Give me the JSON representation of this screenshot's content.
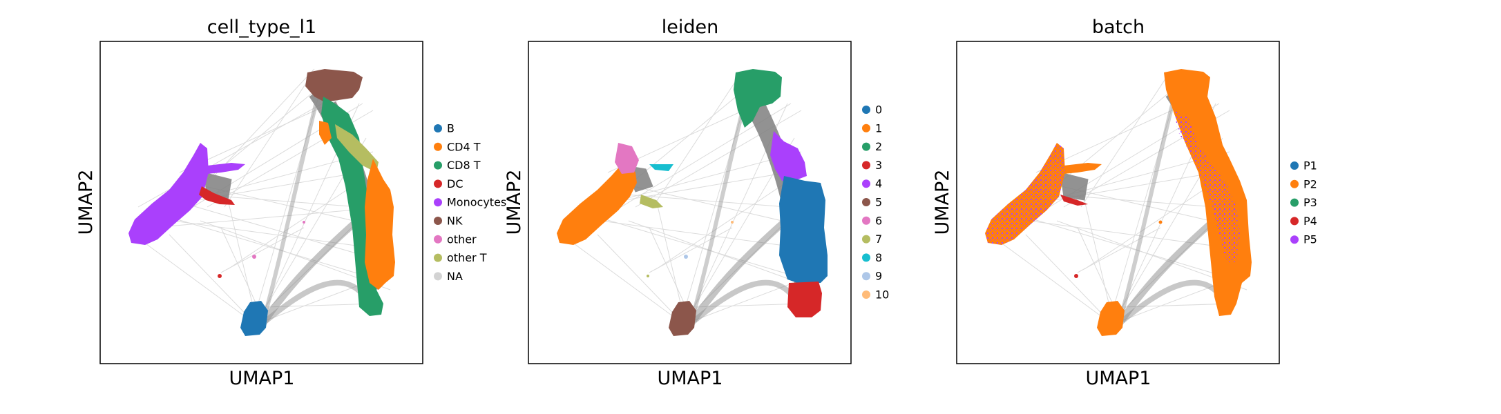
{
  "chart_data": [
    {
      "type": "scatter",
      "title": "cell_type_l1",
      "xlabel": "UMAP1",
      "ylabel": "UMAP2",
      "grid": false,
      "legend": {
        "placement": "right",
        "entries": [
          {
            "label": "B",
            "color": "#1f77b4"
          },
          {
            "label": "CD4 T",
            "color": "#ff7f0e"
          },
          {
            "label": "CD8 T",
            "color": "#279e68"
          },
          {
            "label": "DC",
            "color": "#d62728"
          },
          {
            "label": "Monocytes",
            "color": "#aa40fc"
          },
          {
            "label": "NK",
            "color": "#8c564b"
          },
          {
            "label": "other",
            "color": "#e377c2"
          },
          {
            "label": "other T",
            "color": "#b5bd61"
          },
          {
            "label": "NA",
            "color": "#d3d3d3"
          }
        ]
      },
      "clusters": [
        {
          "group": "Monocytes",
          "x": 0.3,
          "y": 0.55
        },
        {
          "group": "DC",
          "x": 0.36,
          "y": 0.49
        },
        {
          "group": "B",
          "x": 0.47,
          "y": 0.13
        },
        {
          "group": "NK",
          "x": 0.73,
          "y": 0.88
        },
        {
          "group": "CD8 T",
          "x": 0.82,
          "y": 0.58
        },
        {
          "group": "other T",
          "x": 0.8,
          "y": 0.68
        },
        {
          "group": "CD4 T",
          "x": 0.88,
          "y": 0.4
        }
      ]
    },
    {
      "type": "scatter",
      "title": "leiden",
      "xlabel": "UMAP1",
      "ylabel": "UMAP2",
      "grid": false,
      "legend": {
        "placement": "right",
        "entries": [
          {
            "label": "0",
            "color": "#1f77b4"
          },
          {
            "label": "1",
            "color": "#ff7f0e"
          },
          {
            "label": "2",
            "color": "#279e68"
          },
          {
            "label": "3",
            "color": "#d62728"
          },
          {
            "label": "4",
            "color": "#aa40fc"
          },
          {
            "label": "5",
            "color": "#8c564b"
          },
          {
            "label": "6",
            "color": "#e377c2"
          },
          {
            "label": "7",
            "color": "#b5bd61"
          },
          {
            "label": "8",
            "color": "#17becf"
          },
          {
            "label": "9",
            "color": "#aec7e8"
          },
          {
            "label": "10",
            "color": "#ffbb78"
          }
        ]
      },
      "clusters": [
        {
          "group": "1",
          "x": 0.3,
          "y": 0.53
        },
        {
          "group": "6",
          "x": 0.33,
          "y": 0.63
        },
        {
          "group": "7",
          "x": 0.38,
          "y": 0.5
        },
        {
          "group": "8",
          "x": 0.44,
          "y": 0.61
        },
        {
          "group": "5",
          "x": 0.47,
          "y": 0.15
        },
        {
          "group": "2",
          "x": 0.73,
          "y": 0.85
        },
        {
          "group": "4",
          "x": 0.82,
          "y": 0.65
        },
        {
          "group": "0",
          "x": 0.87,
          "y": 0.4
        },
        {
          "group": "3",
          "x": 0.86,
          "y": 0.2
        }
      ]
    },
    {
      "type": "scatter",
      "title": "batch",
      "xlabel": "UMAP1",
      "ylabel": "UMAP2",
      "grid": false,
      "legend": {
        "placement": "right",
        "entries": [
          {
            "label": "P1",
            "color": "#1f77b4"
          },
          {
            "label": "P2",
            "color": "#ff7f0e"
          },
          {
            "label": "P3",
            "color": "#279e68"
          },
          {
            "label": "P4",
            "color": "#d62728"
          },
          {
            "label": "P5",
            "color": "#aa40fc"
          }
        ]
      },
      "clusters": [
        {
          "group": "P2",
          "x": 0.3,
          "y": 0.55
        },
        {
          "group": "P5",
          "x": 0.32,
          "y": 0.52
        },
        {
          "group": "P2",
          "x": 0.47,
          "y": 0.13
        },
        {
          "group": "P2",
          "x": 0.73,
          "y": 0.85
        },
        {
          "group": "P5",
          "x": 0.8,
          "y": 0.6
        },
        {
          "group": "P2",
          "x": 0.86,
          "y": 0.38
        }
      ]
    }
  ],
  "colors": {
    "edges": "#808080",
    "axes": "#000000",
    "background": "#ffffff"
  }
}
